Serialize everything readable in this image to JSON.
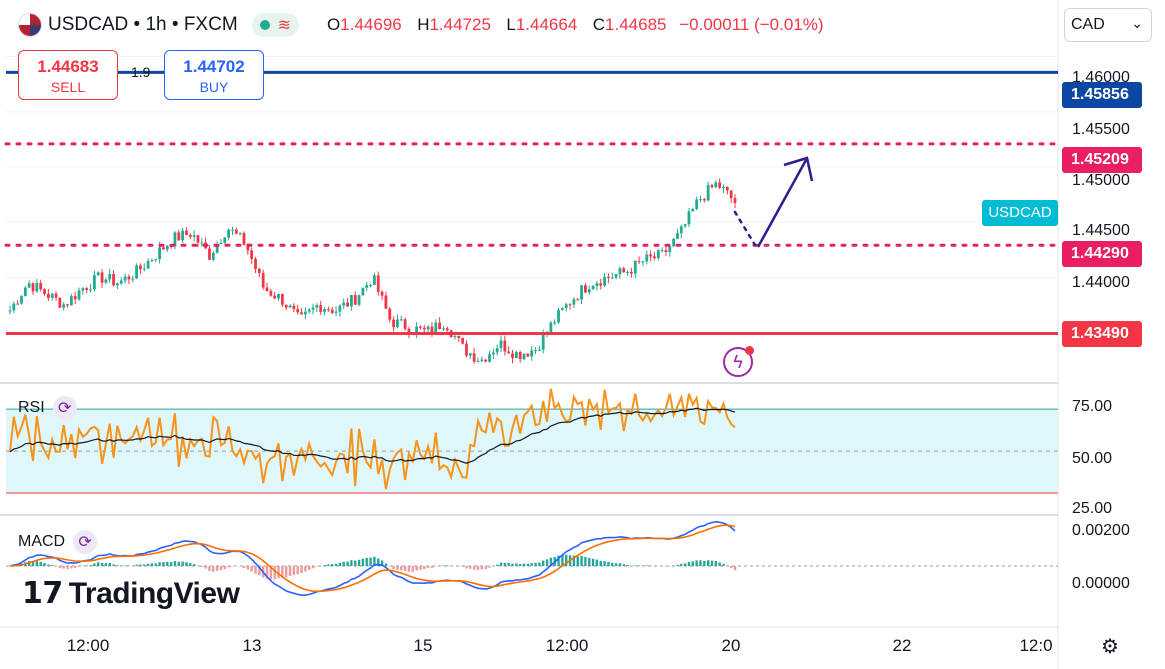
{
  "header": {
    "symbol": "USDCAD",
    "interval": "1h",
    "exchange": "FXCM",
    "ohlc": {
      "o": "1.44696",
      "h": "1.44725",
      "l": "1.44664",
      "c": "1.44685",
      "change": "−0.00011 (−0.01%)"
    }
  },
  "trade": {
    "sell_price": "1.44683",
    "sell_label": "SELL",
    "buy_price": "1.44702",
    "buy_label": "BUY",
    "spread": "1.9"
  },
  "currency_select": {
    "value": "CAD"
  },
  "price_axis": {
    "labels": [
      "1.46000",
      "1.45500",
      "1.45000",
      "1.44500",
      "1.44000"
    ],
    "tags": {
      "blue": "1.45856",
      "pink_upper": "1.45209",
      "pink_lower": "1.44290",
      "red": "1.43490"
    },
    "symbol_tag": "USDCAD"
  },
  "rsi": {
    "label": "RSI",
    "levels": [
      "75.00",
      "50.00",
      "25.00"
    ]
  },
  "macd": {
    "label": "MACD",
    "levels": [
      "0.00200",
      "0.00000"
    ]
  },
  "time_axis": [
    "12:00",
    "13",
    "15",
    "12:00",
    "20",
    "22",
    "12:0"
  ],
  "branding": {
    "name": "TradingView"
  },
  "colors": {
    "up": "#22ab94",
    "down": "#f23645",
    "rsi": "#f7931a",
    "macd": "#2962ff",
    "signal": "#ff6d00",
    "resistance_blue": "#0d47a1",
    "support_red": "#f23645",
    "dotted_pink": "#e91e63",
    "arrow": "#311b92"
  },
  "chart_data": {
    "type": "candlestick",
    "price_ylim": [
      1.4305,
      1.4615
    ],
    "levels": {
      "resistance_blue": 1.45856,
      "target_pink": 1.45209,
      "mid_pink": 1.4429,
      "support_red": 1.4349
    },
    "close_path": [
      1.437,
      1.4395,
      1.4385,
      1.4375,
      1.439,
      1.44,
      1.4395,
      1.4405,
      1.442,
      1.4435,
      1.444,
      1.442,
      1.4445,
      1.443,
      1.439,
      1.438,
      1.436,
      1.4375,
      1.437,
      1.438,
      1.44,
      1.436,
      1.4355,
      1.435,
      1.436,
      1.4335,
      1.4325,
      1.434,
      1.433,
      1.4335,
      1.436,
      1.438,
      1.4395,
      1.44,
      1.4405,
      1.4415,
      1.442,
      1.444,
      1.447,
      1.4485,
      1.4468
    ],
    "rsi_ylim": [
      20,
      82
    ],
    "rsi_band": [
      30,
      70
    ],
    "macd_ylim": [
      -0.0028,
      0.0025
    ]
  }
}
